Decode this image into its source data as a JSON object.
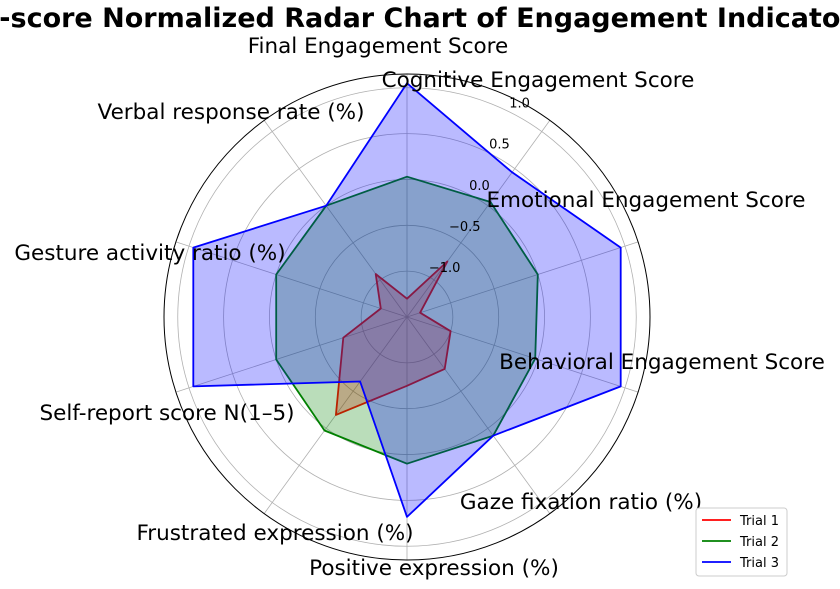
{
  "chart_data": {
    "type": "radar",
    "title": "Z-score Normalized Radar Chart of Engagement Indicators",
    "categories": [
      "Final Engagement Score",
      "Cognitive Engagement Score",
      "Emotional Engagement Score",
      "Behavioral Engagement Score",
      "Gaze fixation ratio (%)",
      "Positive expression (%)",
      "Frustrated expression (%)",
      "Self-report score N(1–5)",
      "Gesture activity ratio (%)",
      "Verbal response rate (%)"
    ],
    "rlim": [
      -1.5,
      1.15
    ],
    "rticks": [
      -1.0,
      -0.5,
      0.0,
      0.5,
      1.0
    ],
    "rtick_labels": [
      "−1.0",
      "−0.5",
      "0.0",
      "0.5",
      "1.0"
    ],
    "series": [
      {
        "name": "Trial 1",
        "color": "#ff0000",
        "fill": "#ff0000",
        "values": [
          -1.3,
          -0.75,
          -1.35,
          -1.0,
          -0.8,
          -0.75,
          -0.18,
          -0.77,
          -1.2,
          -0.92
        ]
      },
      {
        "name": "Trial 2",
        "color": "#008000",
        "fill": "#008000",
        "values": [
          0.03,
          0.05,
          0.0,
          -0.03,
          0.1,
          0.1,
          0.03,
          0.0,
          0.0,
          0.0
        ]
      },
      {
        "name": "Trial 3",
        "color": "#0000ff",
        "fill": "#0000ff",
        "values": [
          1.05,
          0.45,
          0.95,
          0.95,
          0.1,
          0.68,
          -0.63,
          0.95,
          0.95,
          0.0
        ]
      }
    ],
    "legend_position": "lower-right",
    "grid": true
  }
}
